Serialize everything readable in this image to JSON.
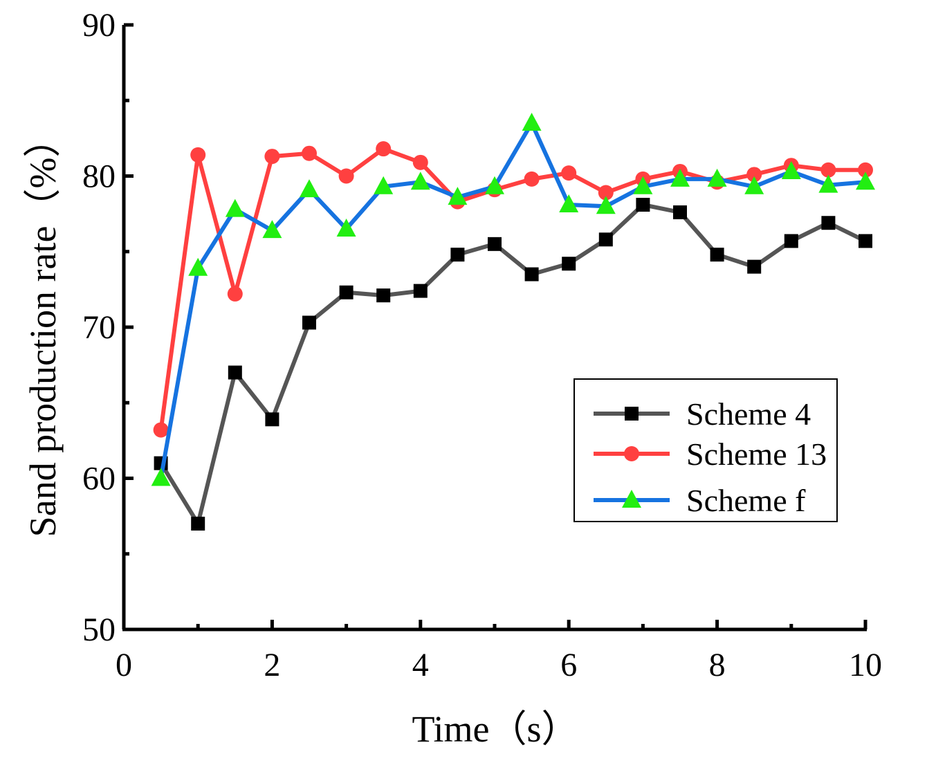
{
  "chart_data": {
    "type": "line",
    "title": "",
    "xlabel": "Time（s）",
    "ylabel": "Sand production rate（%）",
    "xlim": [
      0,
      10
    ],
    "ylim": [
      50,
      90
    ],
    "x_ticks": [
      0,
      2,
      4,
      6,
      8,
      10
    ],
    "y_ticks": [
      50,
      60,
      70,
      80,
      90
    ],
    "legend_position": "right-middle",
    "x": [
      0.5,
      1,
      1.5,
      2,
      2.5,
      3,
      3.5,
      4,
      4.5,
      5,
      5.5,
      6,
      6.5,
      7,
      7.5,
      8,
      8.5,
      9,
      9.5,
      10
    ],
    "series": [
      {
        "name": "Scheme 4",
        "color": "#555555",
        "marker": "square",
        "values": [
          61.0,
          57.0,
          67.0,
          63.9,
          70.3,
          72.3,
          72.1,
          72.4,
          74.8,
          75.5,
          73.5,
          74.2,
          75.8,
          78.1,
          77.6,
          74.8,
          74.0,
          75.7,
          76.9,
          75.7
        ]
      },
      {
        "name": "Scheme 13",
        "color": "#ff4040",
        "marker": "circle",
        "values": [
          63.2,
          81.4,
          72.2,
          81.3,
          81.5,
          80.0,
          81.8,
          80.9,
          78.3,
          79.1,
          79.8,
          80.2,
          78.9,
          79.8,
          80.3,
          79.6,
          80.1,
          80.7,
          80.4,
          80.4
        ]
      },
      {
        "name": "Scheme f",
        "color": "#1673e0",
        "marker": "triangle",
        "marker_color": "#22ee11",
        "values": [
          60.0,
          73.9,
          77.8,
          76.4,
          79.1,
          76.5,
          79.3,
          79.6,
          78.6,
          79.3,
          83.5,
          78.1,
          78.0,
          79.3,
          79.8,
          79.8,
          79.3,
          80.3,
          79.4,
          79.6
        ]
      }
    ]
  }
}
